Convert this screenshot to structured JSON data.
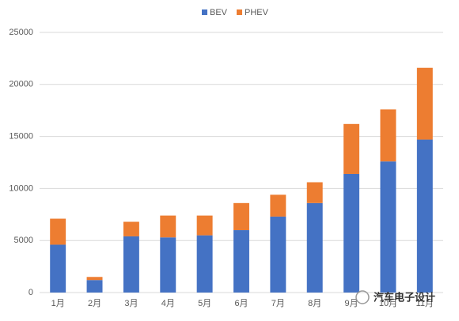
{
  "chart_data": {
    "type": "stacked_bar",
    "categories": [
      "1月",
      "2月",
      "3月",
      "4月",
      "5月",
      "6月",
      "7月",
      "8月",
      "9月",
      "10月",
      "11月"
    ],
    "series": [
      {
        "name": "BEV",
        "color": "#4472c4",
        "values": [
          4600,
          1200,
          5400,
          5300,
          5500,
          6000,
          7300,
          8600,
          11400,
          12600,
          14700
        ]
      },
      {
        "name": "PHEV",
        "color": "#ed7d31",
        "values": [
          2500,
          300,
          1400,
          2100,
          1900,
          2600,
          2100,
          2000,
          4800,
          5000,
          6900
        ]
      }
    ],
    "ylim": [
      0,
      25000
    ],
    "yticks": [
      0,
      5000,
      10000,
      15000,
      20000,
      25000
    ],
    "grid": true,
    "legend": "top",
    "watermark": "汽车电子设计"
  }
}
